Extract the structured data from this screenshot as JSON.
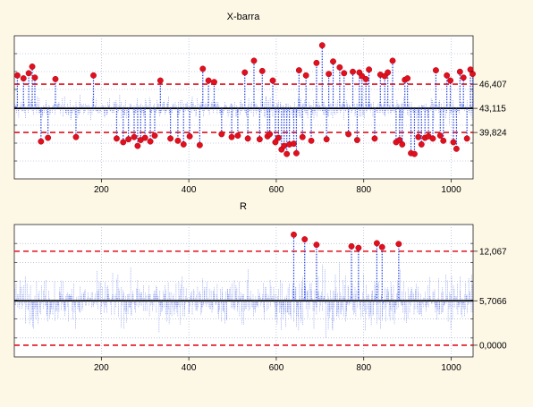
{
  "chart_data": [
    {
      "type": "line",
      "title": "X-barra",
      "xlabel": "",
      "ylabel": "",
      "x_ticks": [
        200,
        400,
        600,
        800,
        1000
      ],
      "xlim": [
        1,
        1050
      ],
      "ylim": [
        33.5,
        53.0
      ],
      "grid": true,
      "center_line": 43.115,
      "ucl": 46.407,
      "lcl": 39.824,
      "right_labels": [
        "46,407",
        "43,115",
        "39,824"
      ],
      "n_points": 1050,
      "out_of_control_points": [
        {
          "x": 8,
          "y": 47.6
        },
        {
          "x": 22,
          "y": 47.2
        },
        {
          "x": 34,
          "y": 47.9
        },
        {
          "x": 42,
          "y": 48.8
        },
        {
          "x": 48,
          "y": 47.3
        },
        {
          "x": 62,
          "y": 38.6
        },
        {
          "x": 78,
          "y": 39.1
        },
        {
          "x": 95,
          "y": 47.1
        },
        {
          "x": 142,
          "y": 39.2
        },
        {
          "x": 182,
          "y": 47.6
        },
        {
          "x": 235,
          "y": 39.0
        },
        {
          "x": 250,
          "y": 38.5
        },
        {
          "x": 262,
          "y": 38.9
        },
        {
          "x": 275,
          "y": 39.2
        },
        {
          "x": 283,
          "y": 38.0
        },
        {
          "x": 290,
          "y": 38.8
        },
        {
          "x": 300,
          "y": 39.1
        },
        {
          "x": 312,
          "y": 38.6
        },
        {
          "x": 322,
          "y": 39.4
        },
        {
          "x": 335,
          "y": 46.9
        },
        {
          "x": 358,
          "y": 39.0
        },
        {
          "x": 375,
          "y": 38.7
        },
        {
          "x": 388,
          "y": 38.2
        },
        {
          "x": 402,
          "y": 39.3
        },
        {
          "x": 425,
          "y": 38.1
        },
        {
          "x": 432,
          "y": 48.5
        },
        {
          "x": 445,
          "y": 46.9
        },
        {
          "x": 458,
          "y": 46.7
        },
        {
          "x": 475,
          "y": 39.6
        },
        {
          "x": 498,
          "y": 39.2
        },
        {
          "x": 512,
          "y": 39.4
        },
        {
          "x": 528,
          "y": 48.0
        },
        {
          "x": 535,
          "y": 39.0
        },
        {
          "x": 549,
          "y": 49.6
        },
        {
          "x": 562,
          "y": 38.9
        },
        {
          "x": 568,
          "y": 48.2
        },
        {
          "x": 580,
          "y": 39.3
        },
        {
          "x": 585,
          "y": 39.6
        },
        {
          "x": 592,
          "y": 46.9
        },
        {
          "x": 598,
          "y": 38.5
        },
        {
          "x": 605,
          "y": 39.1
        },
        {
          "x": 612,
          "y": 37.5
        },
        {
          "x": 618,
          "y": 38.0
        },
        {
          "x": 624,
          "y": 36.9
        },
        {
          "x": 630,
          "y": 38.2
        },
        {
          "x": 640,
          "y": 38.3
        },
        {
          "x": 646,
          "y": 37.0
        },
        {
          "x": 652,
          "y": 48.3
        },
        {
          "x": 660,
          "y": 39.2
        },
        {
          "x": 668,
          "y": 47.6
        },
        {
          "x": 680,
          "y": 38.7
        },
        {
          "x": 692,
          "y": 49.3
        },
        {
          "x": 705,
          "y": 51.7
        },
        {
          "x": 715,
          "y": 38.9
        },
        {
          "x": 720,
          "y": 47.8
        },
        {
          "x": 730,
          "y": 49.5
        },
        {
          "x": 745,
          "y": 48.7
        },
        {
          "x": 755,
          "y": 47.9
        },
        {
          "x": 765,
          "y": 39.6
        },
        {
          "x": 775,
          "y": 48.1
        },
        {
          "x": 785,
          "y": 38.8
        },
        {
          "x": 790,
          "y": 48.0
        },
        {
          "x": 796,
          "y": 47.5
        },
        {
          "x": 805,
          "y": 47.1
        },
        {
          "x": 812,
          "y": 48.4
        },
        {
          "x": 825,
          "y": 39.0
        },
        {
          "x": 838,
          "y": 47.7
        },
        {
          "x": 848,
          "y": 47.5
        },
        {
          "x": 855,
          "y": 48.0
        },
        {
          "x": 866,
          "y": 49.6
        },
        {
          "x": 874,
          "y": 38.5
        },
        {
          "x": 882,
          "y": 38.8
        },
        {
          "x": 888,
          "y": 38.2
        },
        {
          "x": 894,
          "y": 47.0
        },
        {
          "x": 900,
          "y": 47.2
        },
        {
          "x": 908,
          "y": 37.0
        },
        {
          "x": 916,
          "y": 36.9
        },
        {
          "x": 925,
          "y": 39.2
        },
        {
          "x": 932,
          "y": 38.2
        },
        {
          "x": 940,
          "y": 39.1
        },
        {
          "x": 948,
          "y": 39.3
        },
        {
          "x": 958,
          "y": 39.0
        },
        {
          "x": 965,
          "y": 48.3
        },
        {
          "x": 975,
          "y": 39.4
        },
        {
          "x": 982,
          "y": 38.7
        },
        {
          "x": 990,
          "y": 47.6
        },
        {
          "x": 998,
          "y": 46.9
        },
        {
          "x": 1005,
          "y": 38.5
        },
        {
          "x": 1012,
          "y": 37.6
        },
        {
          "x": 1020,
          "y": 48.1
        },
        {
          "x": 1028,
          "y": 47.3
        },
        {
          "x": 1036,
          "y": 39.0
        },
        {
          "x": 1044,
          "y": 48.4
        },
        {
          "x": 1049,
          "y": 47.8
        }
      ]
    },
    {
      "type": "line",
      "title": "R",
      "xlabel": "",
      "ylabel": "",
      "x_ticks": [
        200,
        400,
        600,
        800,
        1000
      ],
      "xlim": [
        1,
        1050
      ],
      "ylim": [
        -1.5,
        15.5
      ],
      "grid": true,
      "center_line": 5.7066,
      "ucl": 12.067,
      "lcl": 0.0,
      "right_labels": [
        "12,067",
        "5,7066",
        "0,0000"
      ],
      "n_points": 1050,
      "out_of_control_points": [
        {
          "x": 640,
          "y": 14.2
        },
        {
          "x": 665,
          "y": 13.6
        },
        {
          "x": 692,
          "y": 12.9
        },
        {
          "x": 772,
          "y": 12.7
        },
        {
          "x": 788,
          "y": 12.5
        },
        {
          "x": 830,
          "y": 13.1
        },
        {
          "x": 842,
          "y": 12.6
        },
        {
          "x": 880,
          "y": 13.0
        }
      ]
    }
  ],
  "colors": {
    "background": "#fdf7e6",
    "plot_background": "#ffffff",
    "data_line": "#1f3fe0",
    "center_line": "#000000",
    "limit_line": "#e0101e",
    "out_of_control": "#e0101e",
    "grid": "#9aa6c8"
  }
}
